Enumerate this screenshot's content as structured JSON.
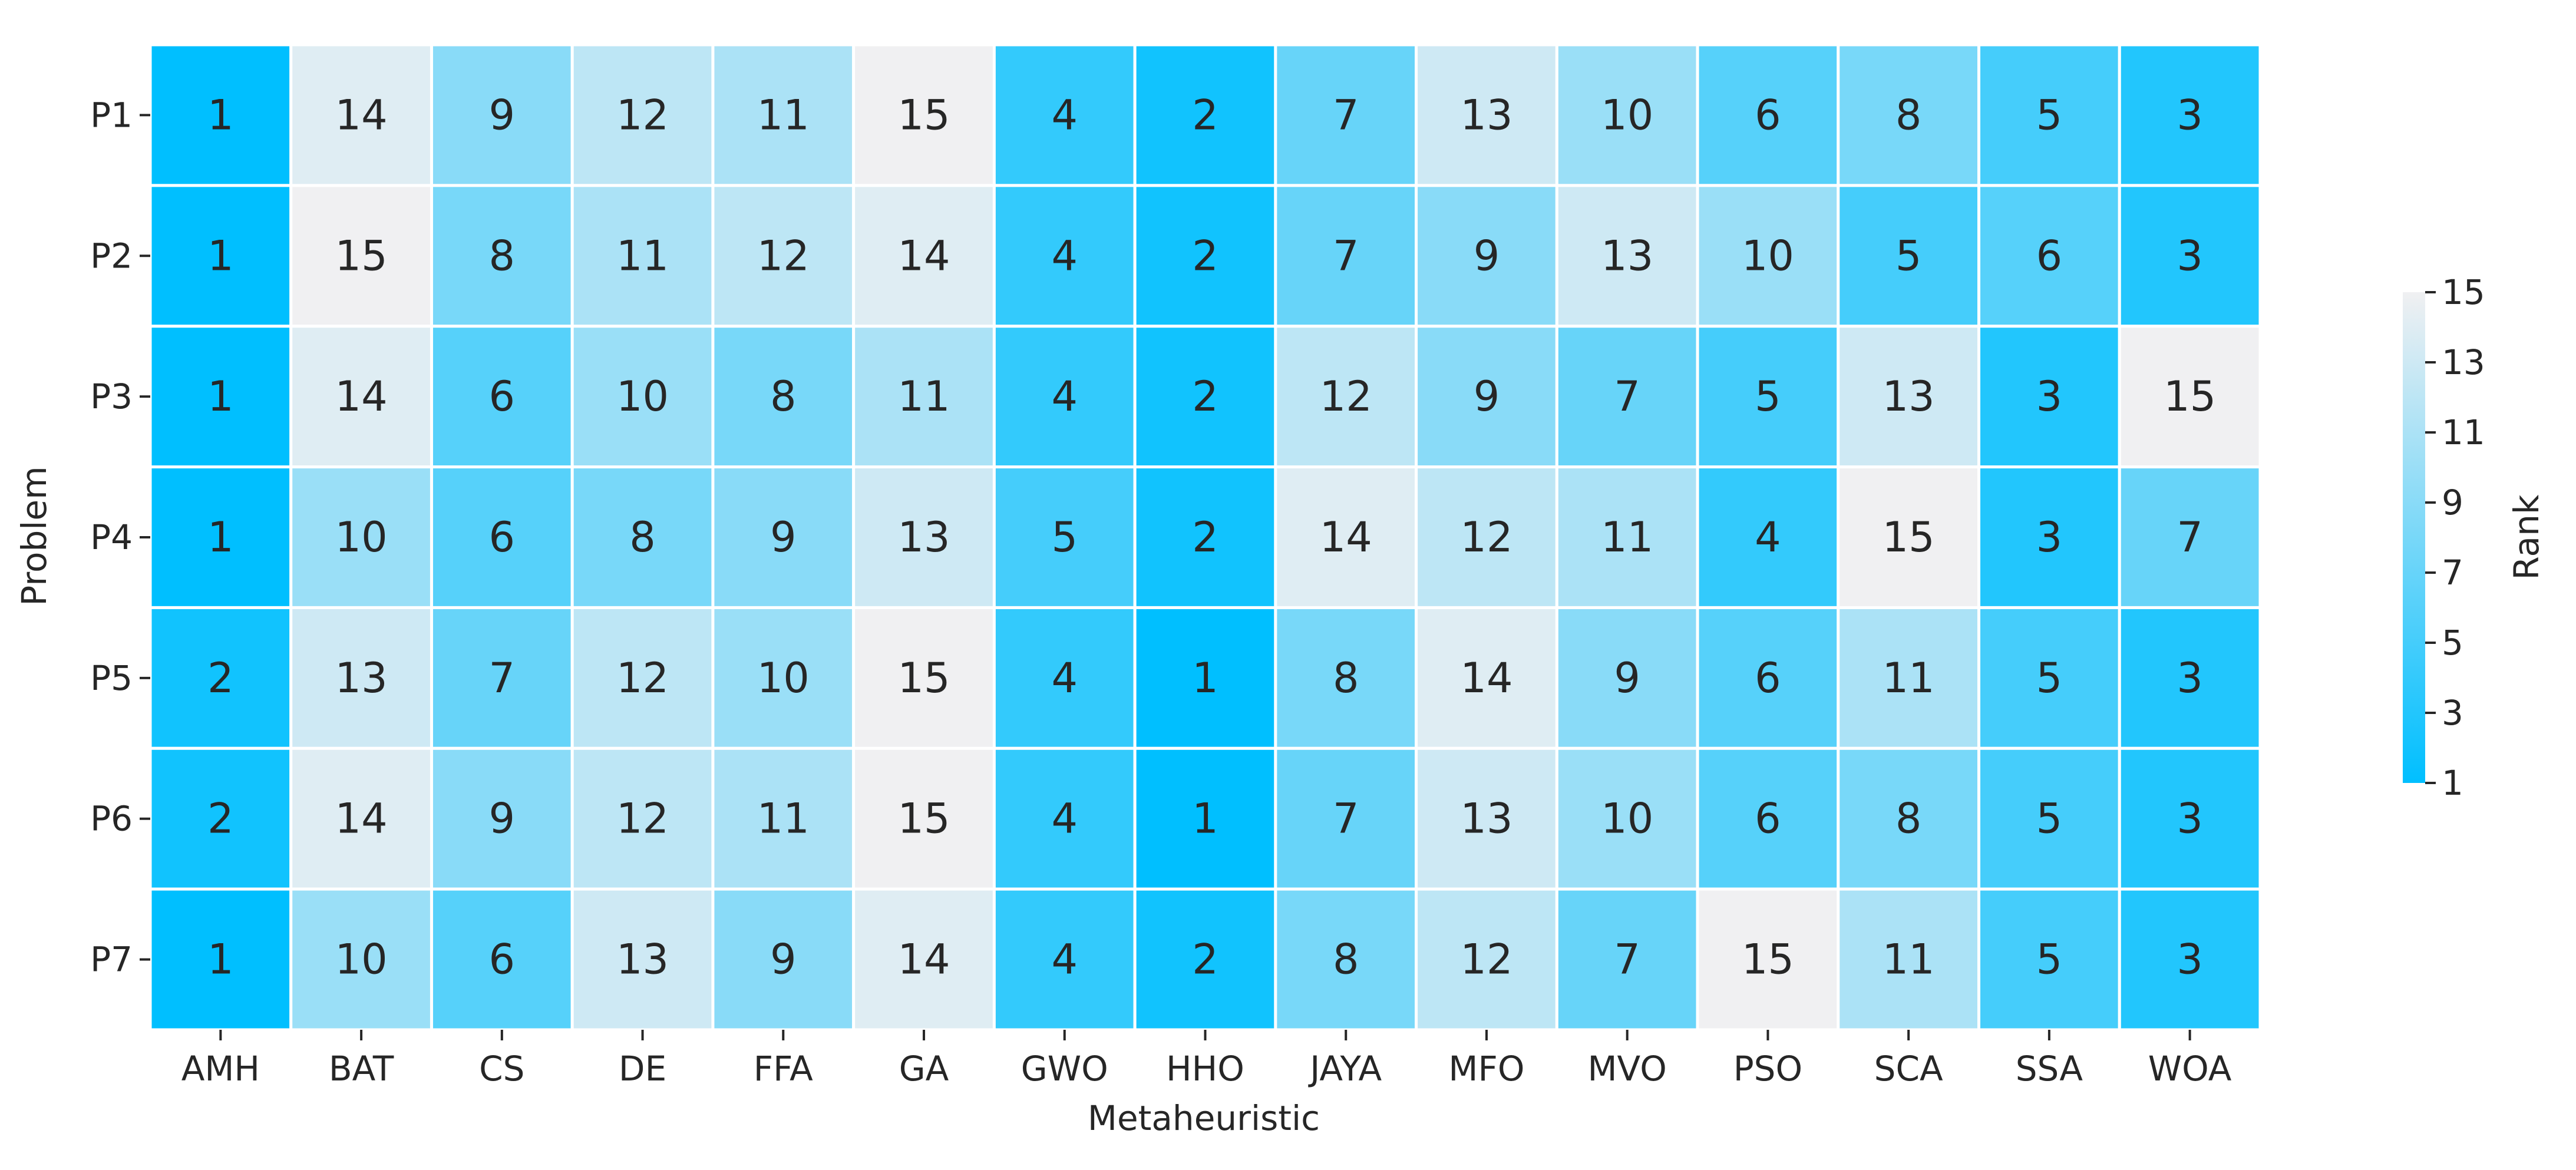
{
  "chart_data": {
    "type": "heatmap",
    "xlabel": "Metaheuristic",
    "ylabel": "Problem",
    "columns": [
      "AMH",
      "BAT",
      "CS",
      "DE",
      "FFA",
      "GA",
      "GWO",
      "HHO",
      "JAYA",
      "MFO",
      "MVO",
      "PSO",
      "SCA",
      "SSA",
      "WOA"
    ],
    "rows": [
      "P1",
      "P2",
      "P3",
      "P4",
      "P5",
      "P6",
      "P7"
    ],
    "values": [
      [
        1,
        14,
        9,
        12,
        11,
        15,
        4,
        2,
        7,
        13,
        10,
        6,
        8,
        5,
        3
      ],
      [
        1,
        15,
        8,
        11,
        12,
        14,
        4,
        2,
        7,
        9,
        13,
        10,
        5,
        6,
        3
      ],
      [
        1,
        14,
        6,
        10,
        8,
        11,
        4,
        2,
        12,
        9,
        7,
        5,
        13,
        3,
        15
      ],
      [
        1,
        10,
        6,
        8,
        9,
        13,
        5,
        2,
        14,
        12,
        11,
        4,
        15,
        3,
        7
      ],
      [
        2,
        13,
        7,
        12,
        10,
        15,
        4,
        1,
        8,
        14,
        9,
        6,
        11,
        5,
        3
      ],
      [
        2,
        14,
        9,
        12,
        11,
        15,
        4,
        1,
        7,
        13,
        10,
        6,
        8,
        5,
        3
      ],
      [
        1,
        10,
        6,
        13,
        9,
        14,
        4,
        2,
        8,
        12,
        7,
        15,
        11,
        5,
        3
      ]
    ],
    "colorbar": {
      "label": "Rank",
      "min": 1,
      "max": 15,
      "ticks": [
        "1",
        "3",
        "5",
        "7",
        "9",
        "11",
        "13",
        "15"
      ]
    },
    "colors": {
      "low": "#00bfff",
      "high": "#f0f0f2",
      "text": "#262626",
      "cell_border": "#ffffff"
    }
  }
}
